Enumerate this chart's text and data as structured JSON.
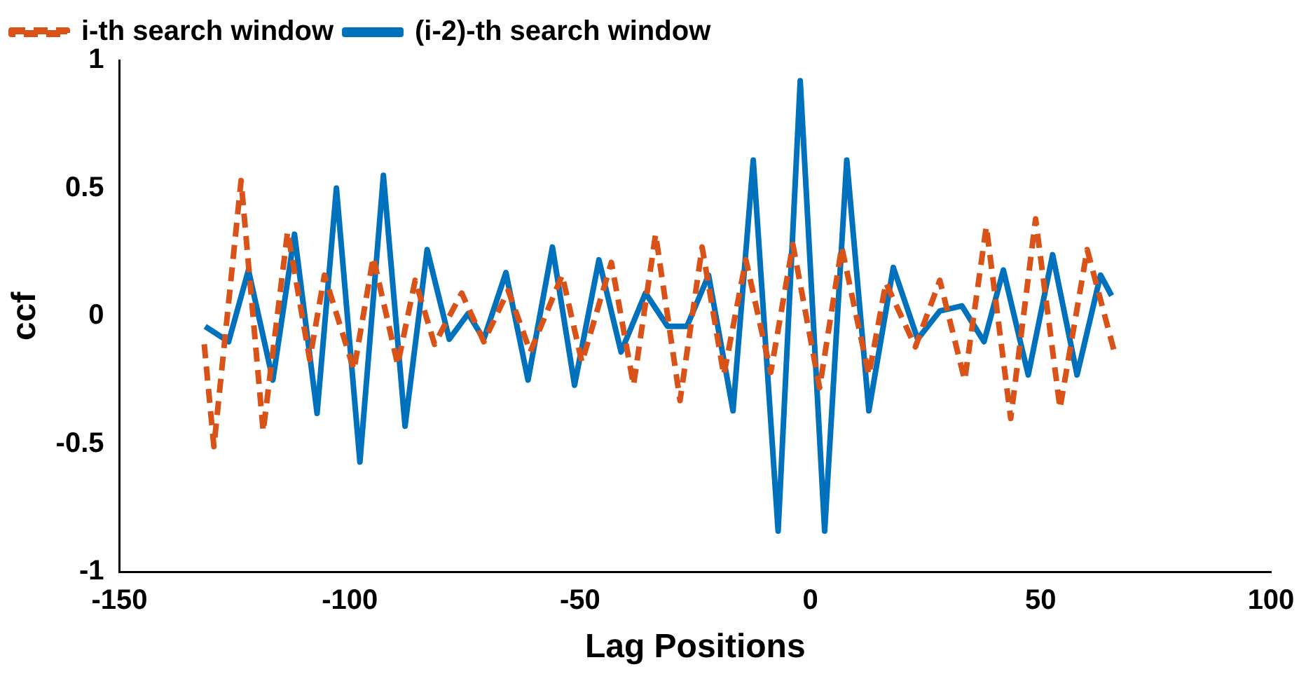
{
  "chart_data": {
    "type": "line",
    "xlabel": "Lag Positions",
    "ylabel": "ccf",
    "xlim": [
      -150,
      100
    ],
    "xticks": [
      -150,
      -100,
      -50,
      0,
      50,
      100
    ],
    "ylim": [
      -1,
      1
    ],
    "yticks": [
      -1,
      -0.5,
      0,
      0.5,
      1
    ],
    "grid": false,
    "legend": "top left",
    "marker": "none",
    "series": [
      {
        "name": "i-th search window",
        "color": "#d95319",
        "line_style": "dashed",
        "x": [
          -131.6,
          -129.5,
          -123.6,
          -118.8,
          -113.5,
          -108.7,
          -105.5,
          -99.1,
          -94.9,
          -89.6,
          -85.8,
          -81.6,
          -75.7,
          -70.9,
          -65.6,
          -60.8,
          -53.9,
          -49.6,
          -43.2,
          -38.4,
          -33.6,
          -28.3,
          -23.5,
          -18.8,
          -14,
          -8.6,
          -3.8,
          2,
          6.8,
          12.7,
          16.4,
          22.8,
          28.1,
          33.5,
          38.2,
          43.5,
          48.9,
          54.2,
          60.1,
          66
        ],
        "values": [
          -0.11,
          -0.51,
          0.53,
          -0.45,
          0.33,
          -0.17,
          0.16,
          -0.21,
          0.23,
          -0.19,
          0.14,
          -0.11,
          0.09,
          -0.1,
          0.1,
          -0.14,
          0.16,
          -0.18,
          0.21,
          -0.27,
          0.32,
          -0.33,
          0.27,
          -0.23,
          0.22,
          -0.22,
          0.28,
          -0.28,
          0.27,
          -0.23,
          0.13,
          -0.12,
          0.14,
          -0.25,
          0.35,
          -0.4,
          0.38,
          -0.36,
          0.26,
          -0.14
        ]
      },
      {
        "name": "(i-2)-th search window",
        "color": "#0072bd",
        "line_style": "solid",
        "x": [
          -131.4,
          -126.3,
          -122,
          -116.7,
          -112,
          -107.1,
          -102.9,
          -97.8,
          -92.7,
          -88,
          -83.2,
          -78.4,
          -74.3,
          -70.9,
          -66.1,
          -61.3,
          -56,
          -51.2,
          -45.9,
          -41.1,
          -35.8,
          -31,
          -26.8,
          -22.1,
          -16.8,
          -12.4,
          -7,
          -2.2,
          3.1,
          7.9,
          12.7,
          18,
          23.3,
          28.1,
          32.9,
          37.7,
          41.9,
          47.3,
          52.6,
          57.9,
          63,
          65.4
        ],
        "values": [
          -0.04,
          -0.1,
          0.18,
          -0.25,
          0.32,
          -0.38,
          0.5,
          -0.57,
          0.55,
          -0.43,
          0.26,
          -0.09,
          0.01,
          -0.09,
          0.17,
          -0.25,
          0.27,
          -0.27,
          0.22,
          -0.14,
          0.09,
          -0.04,
          -0.04,
          0.16,
          -0.37,
          0.61,
          -0.84,
          0.92,
          -0.84,
          0.61,
          -0.37,
          0.19,
          -0.09,
          0.02,
          0.04,
          -0.1,
          0.18,
          -0.23,
          0.24,
          -0.23,
          0.16,
          0.08
        ]
      }
    ]
  }
}
